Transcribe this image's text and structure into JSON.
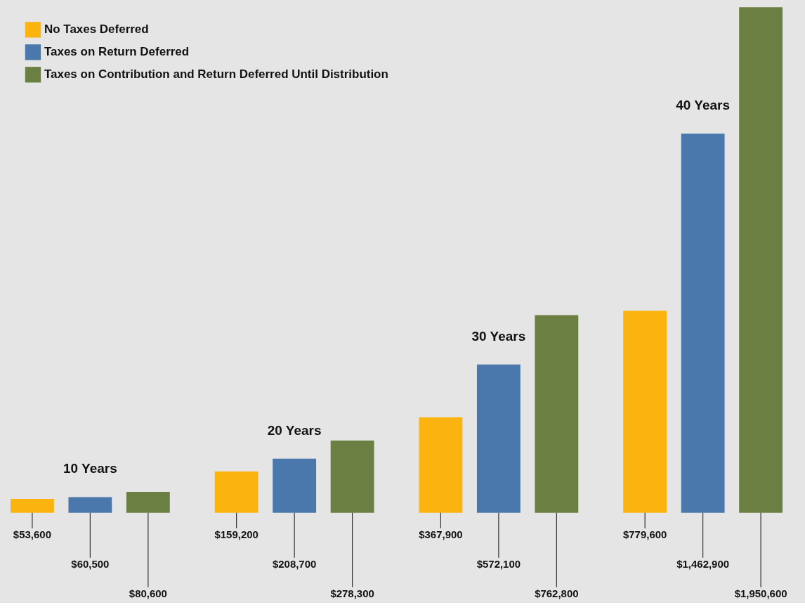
{
  "chart_data": {
    "type": "bar",
    "categories": [
      "10 Years",
      "20 Years",
      "30 Years",
      "40 Years"
    ],
    "legend": "top left",
    "series": [
      {
        "name": "No Taxes Deferred",
        "color": "#fbb40f",
        "values": [
          53600,
          159200,
          367900,
          779600
        ],
        "value_labels": [
          "$53,600",
          "$159,200",
          "$367,900",
          "$779,600"
        ]
      },
      {
        "name": "Taxes on Return Deferred",
        "color": "#4a78ad",
        "values": [
          60500,
          208700,
          572100,
          1462900
        ],
        "value_labels": [
          "$60,500",
          "$208,700",
          "$572,100",
          "$1,462,900"
        ]
      },
      {
        "name": "Taxes on Contribution and Return Deferred Until Distribution",
        "color": "#6a7f41",
        "values": [
          80600,
          278300,
          762800,
          1950600
        ],
        "value_labels": [
          "$80,600",
          "$278,300",
          "$762,800",
          "$1,950,600"
        ]
      }
    ]
  }
}
